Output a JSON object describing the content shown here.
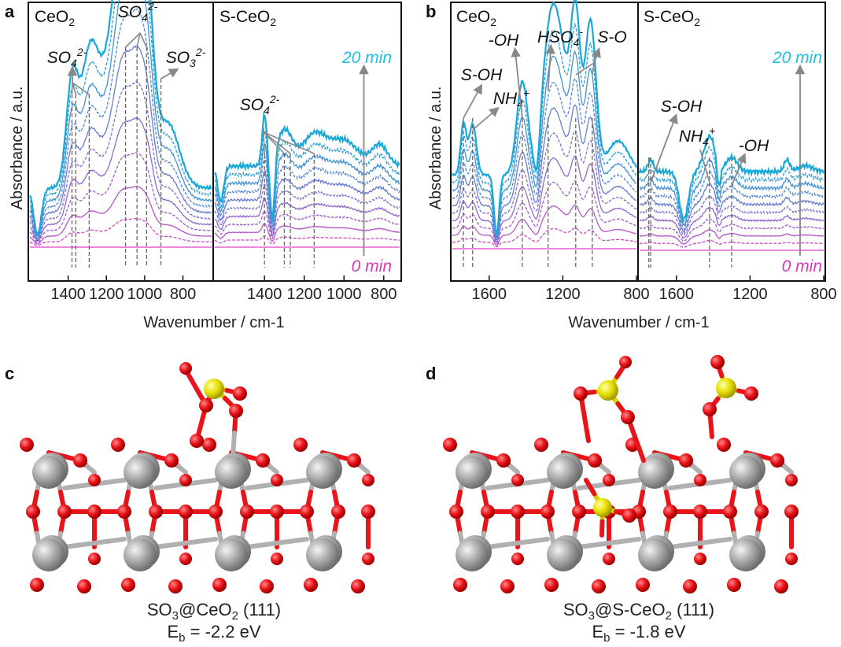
{
  "figure": {
    "panels": [
      "a",
      "b",
      "c",
      "d"
    ],
    "colors": {
      "start": "#e040c8",
      "end": "#1aa8d8",
      "time_start": "#d63ab8",
      "time_end": "#20c0e0",
      "arrow": "#888888",
      "dash": "#666666",
      "ce": "#a8a8a8",
      "o": "#e8141a",
      "s": "#e8e000"
    }
  },
  "chart_data": [
    {
      "type": "line",
      "panel": "a",
      "xlabel": "Wavenumber / cm-1",
      "ylabel": "Absorbance / a.u.",
      "subpanels": [
        {
          "title": "CeO2",
          "x_range": [
            1600,
            650
          ],
          "ticks": [
            1400,
            1200,
            1000,
            800
          ]
        },
        {
          "title": "S-CeO2",
          "x_range": [
            1650,
            720
          ],
          "ticks": [
            1400,
            1200,
            1000,
            800
          ]
        }
      ],
      "series_time_labels": [
        "0 min",
        "20 min"
      ],
      "n_series": 11,
      "annotations": [
        {
          "text": "SO42-",
          "sub": "4",
          "sup": "2-",
          "base": "SO",
          "subpanel": 0,
          "peaks": [
            1380,
            1360,
            1290
          ]
        },
        {
          "text": "SO42-",
          "sub": "4",
          "sup": "2-",
          "base": "SO",
          "subpanel": 0,
          "peaks": [
            1100,
            1040,
            990
          ]
        },
        {
          "text": "SO32-",
          "sub": "3",
          "sup": "2-",
          "base": "SO",
          "subpanel": 0,
          "peaks": [
            915
          ]
        },
        {
          "text": "SO42-",
          "sub": "4",
          "sup": "2-",
          "base": "SO",
          "subpanel": 1,
          "peaks": [
            1400,
            1300,
            1270,
            1150
          ]
        }
      ],
      "peaks_cm-1": {
        "CeO2": [
          1380,
          1360,
          1290,
          1100,
          1040,
          990,
          915
        ],
        "S-CeO2": [
          1400,
          1360,
          1300,
          1270,
          1150,
          900
        ]
      }
    },
    {
      "type": "line",
      "panel": "b",
      "xlabel": "Wavenumber / cm-1",
      "ylabel": "Absorbance / a.u.",
      "subpanels": [
        {
          "title": "CeO2",
          "x_range": [
            1800,
            800
          ],
          "ticks": [
            1600,
            1200,
            800
          ]
        },
        {
          "title": "S-CeO2",
          "x_range": [
            1800,
            800
          ],
          "ticks": [
            1600,
            1200,
            800
          ]
        }
      ],
      "series_time_labels": [
        "0 min",
        "20 min"
      ],
      "n_series": 11,
      "annotations": [
        {
          "base": "S-OH",
          "sub": "",
          "sup": "",
          "subpanel": 0,
          "peaks": [
            1740
          ]
        },
        {
          "base": "NH",
          "sub": "4",
          "sup": "+",
          "subpanel": 0,
          "peaks": [
            1700
          ]
        },
        {
          "base": "-OH",
          "sub": "",
          "sup": "",
          "subpanel": 0,
          "peaks": [
            1420
          ]
        },
        {
          "base": "HSO",
          "sub": "4",
          "sup": "-",
          "subpanel": 0,
          "peaks": [
            1280
          ]
        },
        {
          "base": "S-O",
          "sub": "",
          "sup": "",
          "subpanel": 0,
          "peaks": [
            1130,
            1040
          ]
        },
        {
          "base": "S-OH",
          "sub": "",
          "sup": "",
          "subpanel": 1,
          "peaks": [
            1740
          ]
        },
        {
          "base": "NH",
          "sub": "4",
          "sup": "+",
          "subpanel": 1,
          "peaks": [
            1420
          ]
        },
        {
          "base": "-OH",
          "sub": "",
          "sup": "",
          "subpanel": 1,
          "peaks": [
            1300
          ]
        }
      ]
    }
  ],
  "structures": [
    {
      "panel": "c",
      "caption_formula": "SO",
      "caption_sub1": "3",
      "caption_mid": "@CeO",
      "caption_sub2": "2",
      "caption_end": " (111)",
      "energy_main": "E",
      "energy_sub": "b",
      "energy_value": " = -2.2 eV"
    },
    {
      "panel": "d",
      "caption_formula": "SO",
      "caption_sub1": "3",
      "caption_mid": "@S-CeO",
      "caption_sub2": "2",
      "caption_end": " (111)",
      "energy_main": "E",
      "energy_sub": "b",
      "energy_value": " = -1.8 eV"
    }
  ]
}
